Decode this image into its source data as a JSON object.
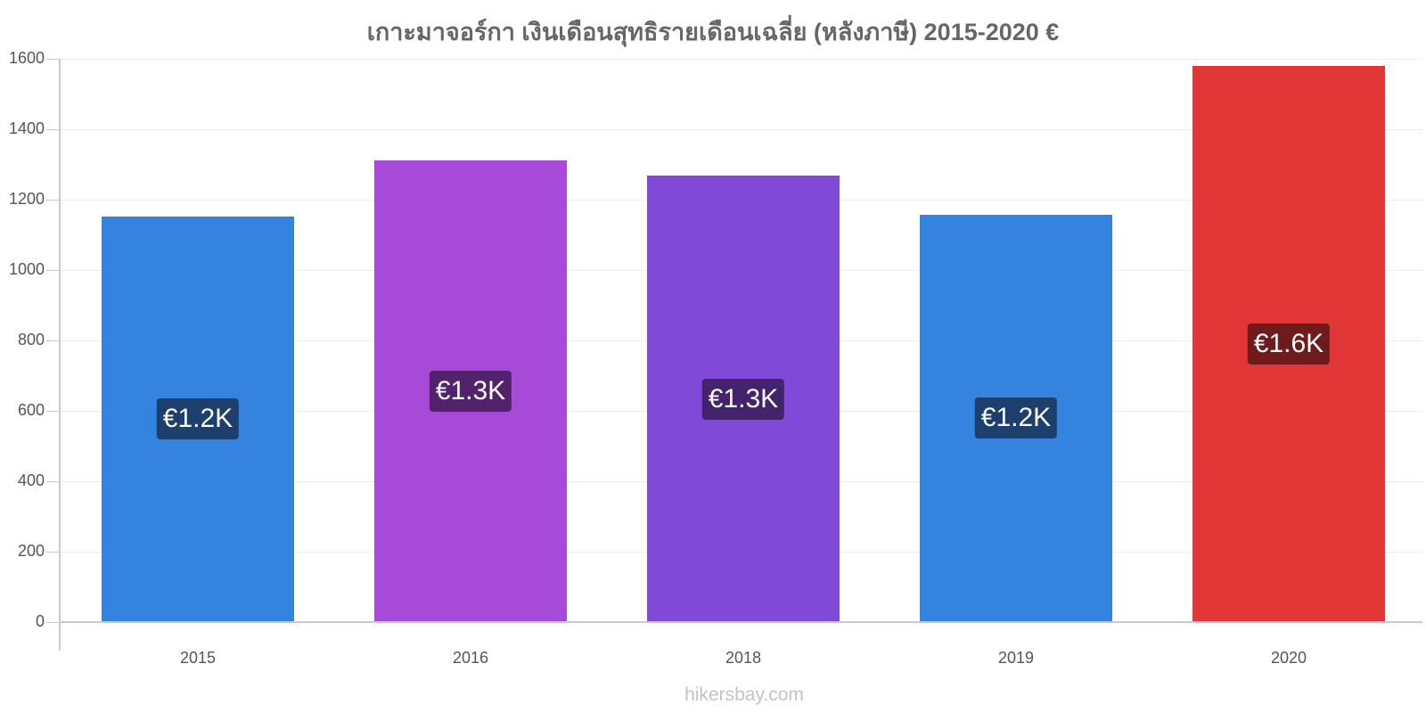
{
  "chart_data": {
    "type": "bar",
    "title": "เกาะมาจอร์กา เงินเดือนสุทธิรายเดือนเฉลี่ย (หลังภาษี) 2015-2020 €",
    "xlabel": "",
    "ylabel": "",
    "ylim": [
      0,
      1600
    ],
    "yticks": [
      "0",
      "200",
      "400",
      "600",
      "800",
      "1000",
      "1200",
      "1400",
      "1600"
    ],
    "grid": true,
    "legend": "none",
    "categories": [
      "2015",
      "2016",
      "2018",
      "2019",
      "2020"
    ],
    "values": [
      1152,
      1311,
      1268,
      1157,
      1580
    ],
    "data_labels": [
      "€1.2K",
      "€1.3K",
      "€1.3K",
      "€1.2K",
      "€1.6K"
    ],
    "bar_colors": [
      "#3483de",
      "#a84ad8",
      "#8049d8",
      "#3483de",
      "#e03636"
    ],
    "label_colors": [
      "#1c3f6d",
      "#53226c",
      "#43236c",
      "#1c3f6d",
      "#6f1b1b"
    ]
  },
  "watermark": "hikersbay.com"
}
